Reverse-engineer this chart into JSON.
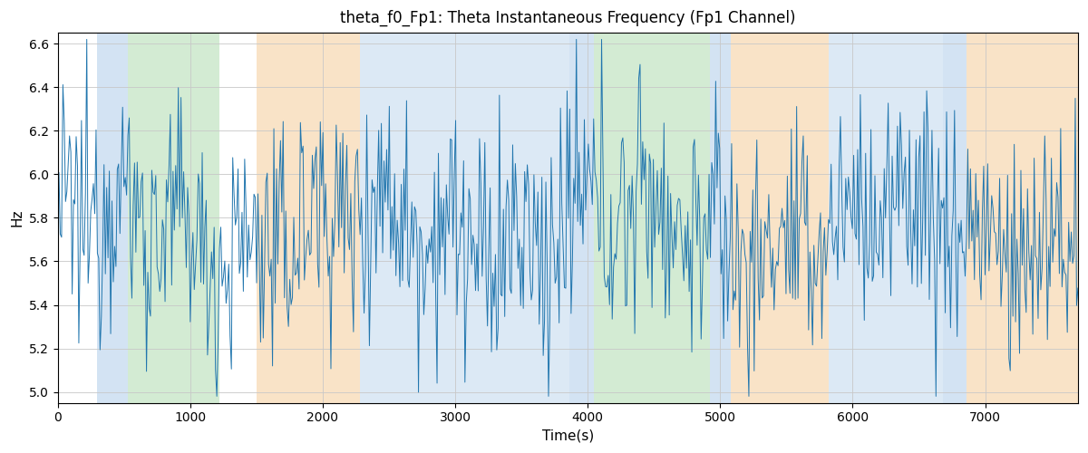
{
  "title": "theta_f0_Fp1: Theta Instantaneous Frequency (Fp1 Channel)",
  "xlabel": "Time(s)",
  "ylabel": "Hz",
  "xlim": [
    0,
    7700
  ],
  "ylim": [
    4.95,
    6.65
  ],
  "line_color": "#2176ae",
  "line_width": 0.7,
  "background_color": "#ffffff",
  "grid": true,
  "yticks": [
    5.0,
    5.2,
    5.4,
    5.6,
    5.8,
    6.0,
    6.2,
    6.4,
    6.6
  ],
  "xticks": [
    0,
    1000,
    2000,
    3000,
    4000,
    5000,
    6000,
    7000
  ],
  "color_bands": [
    {
      "xmin": 300,
      "xmax": 530,
      "color": "#a8c8e8",
      "alpha": 0.5
    },
    {
      "xmin": 530,
      "xmax": 1220,
      "color": "#a8d8a8",
      "alpha": 0.5
    },
    {
      "xmin": 1500,
      "xmax": 2280,
      "color": "#f5c990",
      "alpha": 0.5
    },
    {
      "xmin": 2280,
      "xmax": 3860,
      "color": "#a8c8e8",
      "alpha": 0.4
    },
    {
      "xmin": 3860,
      "xmax": 4050,
      "color": "#a8c8e8",
      "alpha": 0.5
    },
    {
      "xmin": 4050,
      "xmax": 4250,
      "color": "#a8d8a8",
      "alpha": 0.5
    },
    {
      "xmin": 4250,
      "xmax": 4920,
      "color": "#a8d8a8",
      "alpha": 0.5
    },
    {
      "xmin": 4920,
      "xmax": 5080,
      "color": "#a8c8e8",
      "alpha": 0.5
    },
    {
      "xmin": 5080,
      "xmax": 5820,
      "color": "#f5c990",
      "alpha": 0.5
    },
    {
      "xmin": 5820,
      "xmax": 6680,
      "color": "#a8c8e8",
      "alpha": 0.4
    },
    {
      "xmin": 6680,
      "xmax": 6860,
      "color": "#a8c8e8",
      "alpha": 0.5
    },
    {
      "xmin": 6860,
      "xmax": 7700,
      "color": "#f5c990",
      "alpha": 0.5
    }
  ],
  "n_points": 770,
  "seed": 12345
}
